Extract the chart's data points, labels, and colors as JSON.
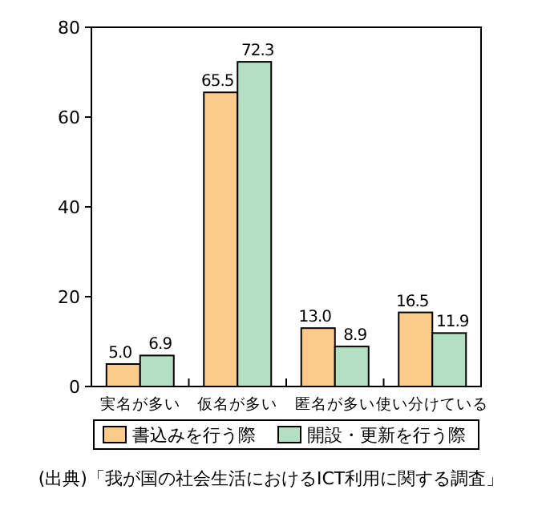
{
  "chart_data": {
    "type": "bar",
    "categories": [
      "実名が多い",
      "仮名が多い",
      "匿名が多い",
      "使い分けている"
    ],
    "series": [
      {
        "name": "書込みを行う際",
        "color": "#fccb8c",
        "values": [
          5.0,
          65.5,
          13.0,
          16.5
        ],
        "value_labels": [
          "5.0",
          "65.5",
          "13.0",
          "16.5"
        ]
      },
      {
        "name": "開設・更新を行う際",
        "color": "#b3dfc3",
        "values": [
          6.9,
          72.3,
          8.9,
          11.9
        ],
        "value_labels": [
          "6.9",
          "72.3",
          "8.9",
          "11.9"
        ]
      }
    ],
    "ylim": [
      0,
      80
    ],
    "yticks": [
      0,
      20,
      40,
      60,
      80
    ],
    "legend": "bottom",
    "grid": false,
    "annotations": [
      "(出典)「我が国の社会生活におけるICT利用に関する調査」"
    ]
  }
}
